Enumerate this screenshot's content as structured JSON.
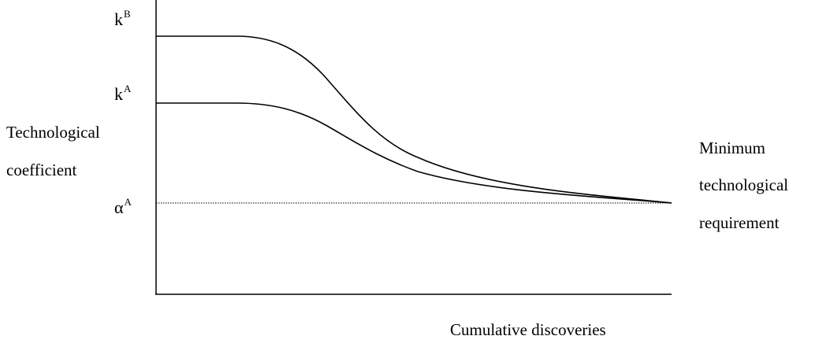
{
  "y_axis": {
    "label_line1": "Technological",
    "label_line2": "coefficient",
    "ticks": [
      {
        "base": "k",
        "sup": "B"
      },
      {
        "base": "k",
        "sup": "A"
      },
      {
        "base": "α",
        "sup": "A"
      }
    ]
  },
  "x_axis": {
    "label": "Cumulative discoveries"
  },
  "right_annotation": {
    "line1": "Minimum",
    "line2": "technological",
    "line3": "requirement"
  }
}
